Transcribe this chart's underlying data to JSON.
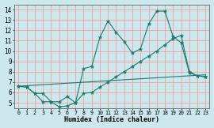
{
  "xlabel": "Humidex (Indice chaleur)",
  "bg_color": "#cce8ec",
  "grid_color": "#f0a0a0",
  "line_color": "#1a7a6e",
  "x_ticks": [
    0,
    1,
    2,
    3,
    4,
    5,
    6,
    7,
    8,
    9,
    10,
    11,
    12,
    13,
    14,
    15,
    16,
    17,
    18,
    19,
    20,
    21,
    22,
    23
  ],
  "y_ticks": [
    5,
    6,
    7,
    8,
    9,
    10,
    11,
    12,
    13,
    14
  ],
  "xlim": [
    -0.5,
    23.5
  ],
  "ylim": [
    4.5,
    14.5
  ],
  "line1_x": [
    0,
    1,
    2,
    3,
    4,
    5,
    6,
    7,
    8,
    9,
    10,
    11,
    12,
    13,
    14,
    15,
    16,
    17,
    18,
    19,
    20,
    21,
    22,
    23
  ],
  "line1_y": [
    6.6,
    6.5,
    5.9,
    5.9,
    5.1,
    5.1,
    5.6,
    5.0,
    8.3,
    8.5,
    11.3,
    12.9,
    11.8,
    10.9,
    9.8,
    10.2,
    12.6,
    13.85,
    13.85,
    11.4,
    10.8,
    7.9,
    7.6,
    7.5
  ],
  "line2_x": [
    0,
    1,
    2,
    3,
    4,
    5,
    6,
    7,
    8,
    9,
    10,
    11,
    12,
    13,
    14,
    15,
    16,
    17,
    18,
    19,
    20,
    21,
    22,
    23
  ],
  "line2_y": [
    6.6,
    6.5,
    5.9,
    5.1,
    5.1,
    4.6,
    4.7,
    5.0,
    5.9,
    6.0,
    6.5,
    7.0,
    7.5,
    8.0,
    8.5,
    9.0,
    9.5,
    10.0,
    10.6,
    11.2,
    11.5,
    8.0,
    7.6,
    7.5
  ],
  "line3_x": [
    0,
    23
  ],
  "line3_y": [
    6.6,
    7.7
  ],
  "markersize": 3.5
}
